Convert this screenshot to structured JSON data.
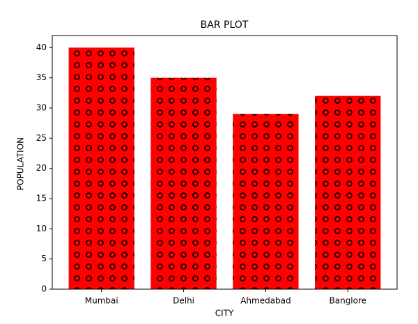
{
  "chart_data": {
    "type": "bar",
    "title": "BAR PLOT",
    "x_label": "CITY",
    "y_label": "POPULATION",
    "categories": [
      "Mumbai",
      "Delhi",
      "Ahmedabad",
      "Banglore"
    ],
    "values": [
      40,
      35,
      29,
      32
    ],
    "color": "#ff0000",
    "hatch_color": "#000000",
    "ylim": [
      0,
      42
    ],
    "yticks": [
      0,
      5,
      10,
      15,
      20,
      25,
      30,
      35,
      40
    ],
    "grid": false
  }
}
